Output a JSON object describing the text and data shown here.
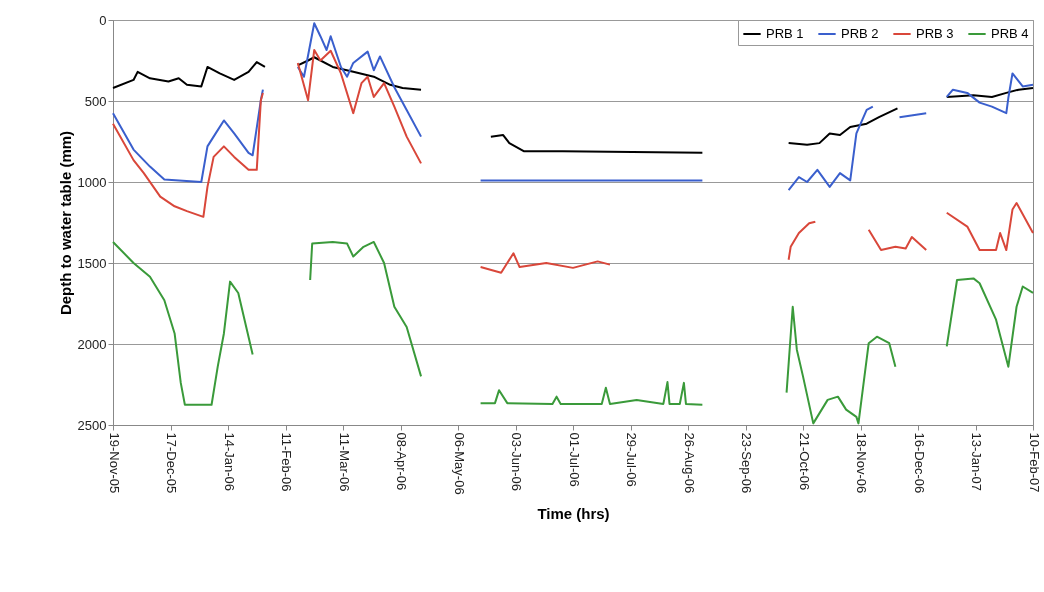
{
  "chart_data": {
    "type": "line",
    "xlabel": "Time (hrs)",
    "ylabel": "Depth to water table (mm)",
    "xlim": [
      "2005-11-19",
      "2007-02-10"
    ],
    "ylim": [
      2500,
      0
    ],
    "yticks": [
      0,
      500,
      1000,
      1500,
      2000,
      2500
    ],
    "xticks": [
      {
        "value": "2005-11-19",
        "label": "19-Nov-05"
      },
      {
        "value": "2005-12-17",
        "label": "17-Dec-05"
      },
      {
        "value": "2006-01-14",
        "label": "14-Jan-06"
      },
      {
        "value": "2006-02-11",
        "label": "11-Feb-06"
      },
      {
        "value": "2006-03-11",
        "label": "11-Mar-06"
      },
      {
        "value": "2006-04-08",
        "label": "08-Apr-06"
      },
      {
        "value": "2006-05-06",
        "label": "06-May-06"
      },
      {
        "value": "2006-06-03",
        "label": "03-Jun-06"
      },
      {
        "value": "2006-07-01",
        "label": "01-Jul-06"
      },
      {
        "value": "2006-07-29",
        "label": "29-Jul-06"
      },
      {
        "value": "2006-08-26",
        "label": "26-Aug-06"
      },
      {
        "value": "2006-09-23",
        "label": "23-Sep-06"
      },
      {
        "value": "2006-10-21",
        "label": "21-Oct-06"
      },
      {
        "value": "2006-11-18",
        "label": "18-Nov-06"
      },
      {
        "value": "2006-12-16",
        "label": "16-Dec-06"
      },
      {
        "value": "2007-01-13",
        "label": "13-Jan-07"
      },
      {
        "value": "2007-02-10",
        "label": "10-Feb-07"
      }
    ],
    "grid": "y",
    "legend": "top right",
    "marker": "none",
    "line_style": "solid",
    "series": [
      {
        "name": "PRB 1",
        "color": "#000000",
        "x": [
          "2005-11-19",
          "2005-11-29",
          "2005-12-01",
          "2005-12-07",
          "2005-12-16",
          "2005-12-21",
          "2005-12-25",
          "2006-01-01",
          "2006-01-04",
          "2006-01-07",
          "2006-01-10",
          "2006-01-17",
          "2006-01-24",
          "2006-01-28",
          "2006-02-01",
          "2006-02-09",
          "2006-02-17",
          "2006-02-22",
          "2006-02-25",
          "2006-03-06",
          "2006-03-16",
          "2006-03-26",
          "2006-04-03",
          "2006-04-09",
          "2006-04-18",
          "2006-05-05",
          "2006-05-22",
          "2006-05-28",
          "2006-05-31",
          "2006-06-07",
          "2006-06-26",
          "2006-09-02",
          "2006-09-20",
          "2006-10-14",
          "2006-10-23",
          "2006-10-29",
          "2006-11-03",
          "2006-11-08",
          "2006-11-13",
          "2006-11-21",
          "2006-11-27",
          "2006-12-06",
          "2006-12-20",
          "2006-12-30",
          "2007-01-12",
          "2007-01-21",
          "2007-01-28",
          "2007-02-03",
          "2007-02-10"
        ],
        "values": [
          420,
          370,
          320,
          360,
          380,
          360,
          400,
          410,
          290,
          310,
          330,
          370,
          320,
          260,
          290,
          null,
          280,
          250,
          230,
          290,
          320,
          350,
          400,
          420,
          430,
          null,
          720,
          710,
          760,
          810,
          810,
          820,
          null,
          760,
          770,
          760,
          700,
          710,
          660,
          640,
          600,
          545,
          null,
          475,
          465,
          475,
          450,
          430,
          420
        ]
      },
      {
        "name": "PRB 2",
        "color": "#3a5fcd",
        "x": [
          "2005-11-19",
          "2005-11-29",
          "2005-12-07",
          "2005-12-14",
          "2006-01-01",
          "2006-01-04",
          "2006-01-08",
          "2006-01-12",
          "2006-01-17",
          "2006-01-24",
          "2006-01-26",
          "2006-01-30",
          "2006-01-31",
          "2006-02-09",
          "2006-02-17",
          "2006-02-20",
          "2006-02-25",
          "2006-02-28",
          "2006-03-03",
          "2006-03-05",
          "2006-03-10",
          "2006-03-13",
          "2006-03-16",
          "2006-03-23",
          "2006-03-26",
          "2006-03-29",
          "2006-04-05",
          "2006-04-11",
          "2006-04-18",
          "2006-05-05",
          "2006-05-17",
          "2006-09-02",
          "2006-09-20",
          "2006-10-14",
          "2006-10-19",
          "2006-10-23",
          "2006-10-28",
          "2006-11-03",
          "2006-11-08",
          "2006-11-13",
          "2006-11-16",
          "2006-11-21",
          "2006-11-24",
          "2006-12-01",
          "2006-12-07",
          "2006-12-20",
          "2006-12-25",
          "2006-12-30",
          "2007-01-02",
          "2007-01-09",
          "2007-01-15",
          "2007-01-21",
          "2007-01-28",
          "2007-01-29",
          "2007-01-31",
          "2007-02-05",
          "2007-02-10"
        ],
        "values": [
          575,
          800,
          905,
          985,
          1000,
          780,
          700,
          620,
          700,
          820,
          835,
          495,
          430,
          null,
          290,
          350,
          20,
          100,
          185,
          100,
          290,
          350,
          265,
          195,
          310,
          225,
          415,
          555,
          720,
          null,
          990,
          990,
          null,
          1050,
          970,
          1000,
          925,
          1030,
          945,
          990,
          700,
          555,
          535,
          null,
          600,
          575,
          null,
          475,
          430,
          450,
          510,
          535,
          575,
          480,
          330,
          410,
          400
        ]
      },
      {
        "name": "PRB 3",
        "color": "#d9473a",
        "x": [
          "2005-11-19",
          "2005-11-29",
          "2005-12-04",
          "2005-12-12",
          "2005-12-19",
          "2005-12-25",
          "2006-01-02",
          "2006-01-04",
          "2006-01-07",
          "2006-01-12",
          "2006-01-17",
          "2006-01-24",
          "2006-01-28",
          "2006-01-30",
          "2006-01-31",
          "2006-02-09",
          "2006-02-17",
          "2006-02-22",
          "2006-02-25",
          "2006-02-28",
          "2006-03-05",
          "2006-03-10",
          "2006-03-16",
          "2006-03-20",
          "2006-03-23",
          "2006-03-26",
          "2006-03-31",
          "2006-04-05",
          "2006-04-11",
          "2006-04-18",
          "2006-05-05",
          "2006-05-17",
          "2006-05-27",
          "2006-06-02",
          "2006-06-05",
          "2006-06-18",
          "2006-07-01",
          "2006-07-13",
          "2006-07-19",
          "2006-09-20",
          "2006-10-14",
          "2006-10-15",
          "2006-10-19",
          "2006-10-24",
          "2006-10-27",
          "2006-11-15",
          "2006-11-22",
          "2006-11-28",
          "2006-12-05",
          "2006-12-10",
          "2006-12-13",
          "2006-12-20",
          "2006-12-25",
          "2006-12-30",
          "2007-01-09",
          "2007-01-15",
          "2007-01-23",
          "2007-01-25",
          "2007-01-28",
          "2007-01-31",
          "2007-02-02",
          "2007-02-10"
        ],
        "values": [
          640,
          865,
          945,
          1090,
          1150,
          1180,
          1215,
          1030,
          845,
          780,
          845,
          925,
          925,
          495,
          450,
          null,
          265,
          495,
          185,
          250,
          190,
          330,
          575,
          390,
          350,
          475,
          390,
          535,
          720,
          885,
          null,
          1525,
          1560,
          1440,
          1525,
          1500,
          1530,
          1490,
          1510,
          null,
          1480,
          1400,
          1315,
          1255,
          1245,
          null,
          1295,
          1420,
          1400,
          1410,
          1340,
          1420,
          null,
          1190,
          1275,
          1420,
          1420,
          1315,
          1420,
          1170,
          1130,
          1315
        ]
      },
      {
        "name": "PRB 4",
        "color": "#3a9a3a",
        "x": [
          "2005-11-19",
          "2005-11-29",
          "2005-12-07",
          "2005-12-14",
          "2005-12-19",
          "2005-12-22",
          "2005-12-24",
          "2006-01-06",
          "2006-01-09",
          "2006-01-12",
          "2006-01-15",
          "2006-01-19",
          "2006-01-26",
          "2006-02-09",
          "2006-02-23",
          "2006-02-24",
          "2006-03-06",
          "2006-03-13",
          "2006-03-16",
          "2006-03-21",
          "2006-03-26",
          "2006-03-31",
          "2006-04-05",
          "2006-04-11",
          "2006-04-18",
          "2006-05-05",
          "2006-05-17",
          "2006-05-24",
          "2006-05-26",
          "2006-05-30",
          "2006-06-21",
          "2006-06-23",
          "2006-06-25",
          "2006-07-15",
          "2006-07-17",
          "2006-07-19",
          "2006-08-01",
          "2006-08-14",
          "2006-08-16",
          "2006-08-17",
          "2006-08-22",
          "2006-08-24",
          "2006-08-25",
          "2006-09-02",
          "2006-09-20",
          "2006-10-13",
          "2006-10-16",
          "2006-10-18",
          "2006-10-21",
          "2006-10-26",
          "2006-11-02",
          "2006-11-07",
          "2006-11-11",
          "2006-11-16",
          "2006-11-17",
          "2006-11-22",
          "2006-11-26",
          "2006-12-02",
          "2006-12-05",
          "2006-12-20",
          "2006-12-30",
          "2007-01-04",
          "2007-01-12",
          "2007-01-15",
          "2007-01-23",
          "2007-01-29",
          "2007-02-02",
          "2007-02-05",
          "2007-02-10"
        ],
        "values": [
          1370,
          1500,
          1585,
          1730,
          1935,
          2240,
          2375,
          2375,
          2140,
          1935,
          1615,
          1685,
          2065,
          null,
          1605,
          1380,
          1370,
          1380,
          1460,
          1400,
          1370,
          1500,
          1770,
          1895,
          2200,
          null,
          2365,
          2365,
          2285,
          2365,
          2370,
          2325,
          2370,
          2370,
          2270,
          2370,
          2345,
          2370,
          2235,
          2370,
          2370,
          2240,
          2370,
          2375,
          null,
          2300,
          1770,
          2035,
          2200,
          2490,
          2345,
          2325,
          2405,
          2450,
          2490,
          1995,
          1955,
          1995,
          2140,
          null,
          2015,
          1605,
          1595,
          1625,
          1850,
          2140,
          1770,
          1645,
          1685
        ]
      }
    ]
  }
}
